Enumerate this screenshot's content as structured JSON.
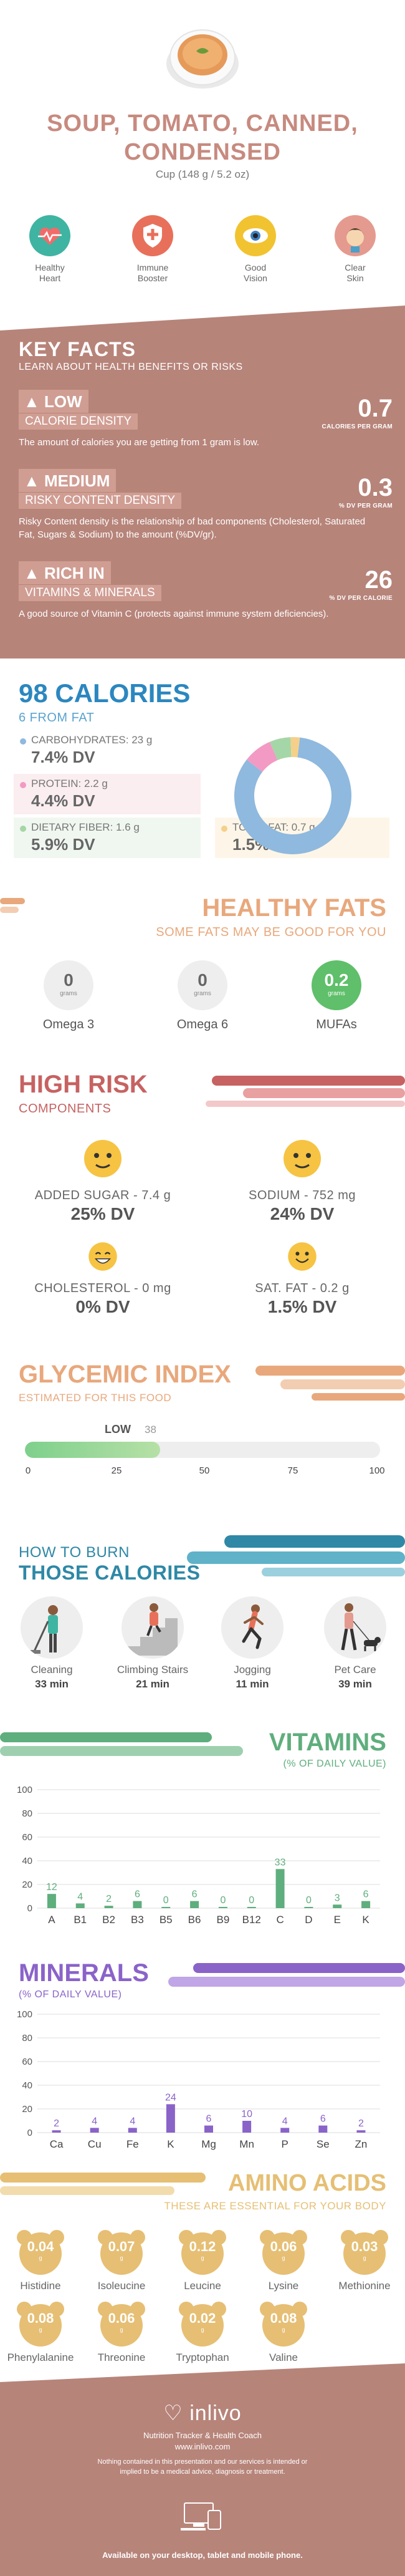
{
  "header": {
    "title_line1": "SOUP, TOMATO, CANNED,",
    "title_line2": "CONDENSED",
    "serving": "Cup (148 g / 5.2 oz)",
    "benefits": [
      {
        "label1": "Healthy",
        "label2": "Heart",
        "icon": "heart-rate-icon",
        "color": "#3fb4a2"
      },
      {
        "label1": "Immune",
        "label2": "Booster",
        "icon": "shield-icon",
        "color": "#e8705a"
      },
      {
        "label1": "Good",
        "label2": "Vision",
        "icon": "eye-icon",
        "color": "#f2c330"
      },
      {
        "label1": "Clear",
        "label2": "Skin",
        "icon": "face-icon",
        "color": "#e59a8f"
      }
    ]
  },
  "key_facts": {
    "title": "KEY FACTS",
    "subtitle": "LEARN ABOUT HEALTH BENEFITS OR RISKS",
    "facts": [
      {
        "icon": "flame-icon",
        "level": "LOW",
        "label": "CALORIE DENSITY",
        "value": "0.7",
        "unit": "CALORIES PER GRAM",
        "desc": "The amount of calories you are getting from 1 gram is low."
      },
      {
        "icon": "warning-icon",
        "level": "MEDIUM",
        "label": "RISKY CONTENT DENSITY",
        "value": "0.3",
        "unit": "% DV PER GRAM",
        "desc": "Risky Content density is the relationship of bad components (Cholesterol, Saturated Fat, Sugars & Sodium) to the amount (%DV/gr)."
      },
      {
        "icon": "flame-icon",
        "level": "RICH  IN",
        "label": "VITAMINS & MINERALS",
        "value": "26",
        "unit": "% DV PER CALORIE",
        "desc": "A good source of Vitamin C (protects against immune system deficiencies)."
      }
    ]
  },
  "calories": {
    "title": "98 CALORIES",
    "fat": "6 FROM FAT",
    "nutrients": [
      {
        "name": "CARBOHYDRATES: 23 g",
        "dv": "7.4% DV",
        "color": "#8fb9de"
      },
      {
        "name": "PROTEIN: 2.2 g",
        "dv": "4.4% DV",
        "color": "#f29ac4"
      },
      {
        "name": "DIETARY FIBER: 1.6 g",
        "dv": "5.9% DV",
        "color": "#a5d6a7"
      },
      {
        "name": "TOTAL FAT: 0.7 g",
        "dv": "1.5% DV",
        "color": "#f5d08a"
      }
    ],
    "donut": [
      {
        "name": "Carbohydrates",
        "value": 23,
        "color": "#8fb9de"
      },
      {
        "name": "Protein",
        "value": 2.2,
        "color": "#f29ac4"
      },
      {
        "name": "Dietary fiber",
        "value": 1.6,
        "color": "#a5d6a7"
      },
      {
        "name": "Total fat",
        "value": 0.7,
        "color": "#f5d08a"
      }
    ]
  },
  "healthy_fats": {
    "title": "HEALTHY FATS",
    "subtitle": "SOME FATS MAY BE GOOD FOR YOU",
    "items": [
      {
        "value": "0",
        "unit": "grams",
        "label": "Omega 3",
        "highlight": false
      },
      {
        "value": "0",
        "unit": "grams",
        "label": "Omega 6",
        "highlight": false
      },
      {
        "value": "0.2",
        "unit": "grams",
        "label": "MUFAs",
        "highlight": true
      }
    ]
  },
  "high_risk": {
    "title": "HIGH RISK",
    "subtitle": "COMPONENTS",
    "items": [
      {
        "name": "ADDED SUGAR - 7.4 g",
        "dv": "25% DV",
        "face": "neutral-face-icon"
      },
      {
        "name": "SODIUM - 752 mg",
        "dv": "24% DV",
        "face": "neutral-face-icon"
      },
      {
        "name": "CHOLESTEROL - 0 mg",
        "dv": "0% DV",
        "face": "grin-face-icon"
      },
      {
        "name": "SAT. FAT - 0.2 g",
        "dv": "1.5% DV",
        "face": "smile-face-icon"
      }
    ]
  },
  "glycemic": {
    "title": "GLYCEMIC INDEX",
    "subtitle": "ESTIMATED FOR THIS FOOD",
    "level": "LOW",
    "value": 38,
    "value_label": "38",
    "ticks": [
      "0",
      "25",
      "50",
      "75",
      "100"
    ]
  },
  "burn": {
    "title1": "HOW TO BURN",
    "title2": "THOSE CALORIES",
    "activities": [
      {
        "name": "Cleaning",
        "minutes": "33 min",
        "icon": "cleaning-icon"
      },
      {
        "name": "Climbing Stairs",
        "minutes": "21 min",
        "icon": "stairs-icon"
      },
      {
        "name": "Jogging",
        "minutes": "11 min",
        "icon": "jogging-icon"
      },
      {
        "name": "Pet Care",
        "minutes": "39 min",
        "icon": "dog-walking-icon"
      }
    ]
  },
  "vitamins": {
    "title": "VITAMINS",
    "subtitle": "(% OF DAILY VALUE)",
    "color": "#5fae7d",
    "chart_data": {
      "type": "bar",
      "categories": [
        "A",
        "B1",
        "B2",
        "B3",
        "B5",
        "B6",
        "B9",
        "B12",
        "C",
        "D",
        "E",
        "K"
      ],
      "values": [
        12,
        4,
        2,
        6,
        0,
        6,
        0,
        0,
        33,
        0,
        3,
        6
      ],
      "labels": [
        "12",
        "4",
        "2",
        "6",
        "0",
        "6",
        "0",
        "0",
        "33",
        "0",
        "3",
        "6"
      ],
      "yticks": [
        "100",
        "80",
        "60",
        "40",
        "20",
        "0"
      ],
      "ylim": [
        0,
        100
      ]
    }
  },
  "minerals": {
    "title": "MINERALS",
    "subtitle": "(% OF DAILY VALUE)",
    "color": "#8a63c9",
    "chart_data": {
      "type": "bar",
      "categories": [
        "Ca",
        "Cu",
        "Fe",
        "K",
        "Mg",
        "Mn",
        "P",
        "Se",
        "Zn"
      ],
      "values": [
        2,
        4,
        4,
        24,
        6,
        10,
        4,
        6,
        2
      ],
      "labels": [
        "2",
        "4",
        "4",
        "24",
        "6",
        "10",
        "4",
        "6",
        "2"
      ],
      "yticks": [
        "100",
        "80",
        "60",
        "40",
        "20",
        "0"
      ],
      "ylim": [
        0,
        100
      ]
    }
  },
  "amino": {
    "title": "AMINO ACIDS",
    "subtitle": "THESE ARE ESSENTIAL FOR YOUR BODY",
    "unit": "g",
    "items": [
      {
        "value": "0.04",
        "label": "Histidine"
      },
      {
        "value": "0.07",
        "label": "Isoleucine"
      },
      {
        "value": "0.12",
        "label": "Leucine"
      },
      {
        "value": "0.06",
        "label": "Lysine"
      },
      {
        "value": "0.03",
        "label": "Methionine"
      },
      {
        "value": "0.08",
        "label": "Phenylalanine"
      },
      {
        "value": "0.06",
        "label": "Threonine"
      },
      {
        "value": "0.02",
        "label": "Tryptophan"
      },
      {
        "value": "0.08",
        "label": "Valine"
      }
    ]
  },
  "footer": {
    "brand": "inlivo",
    "tagline": "Nutrition Tracker & Health Coach",
    "url": "www.inlivo.com",
    "disclaimer": "Nothing contained in this presentation and our services is intended or implied to be a medical advice, diagnosis or treatment.",
    "available": "Available on your desktop, tablet and mobile phone."
  }
}
